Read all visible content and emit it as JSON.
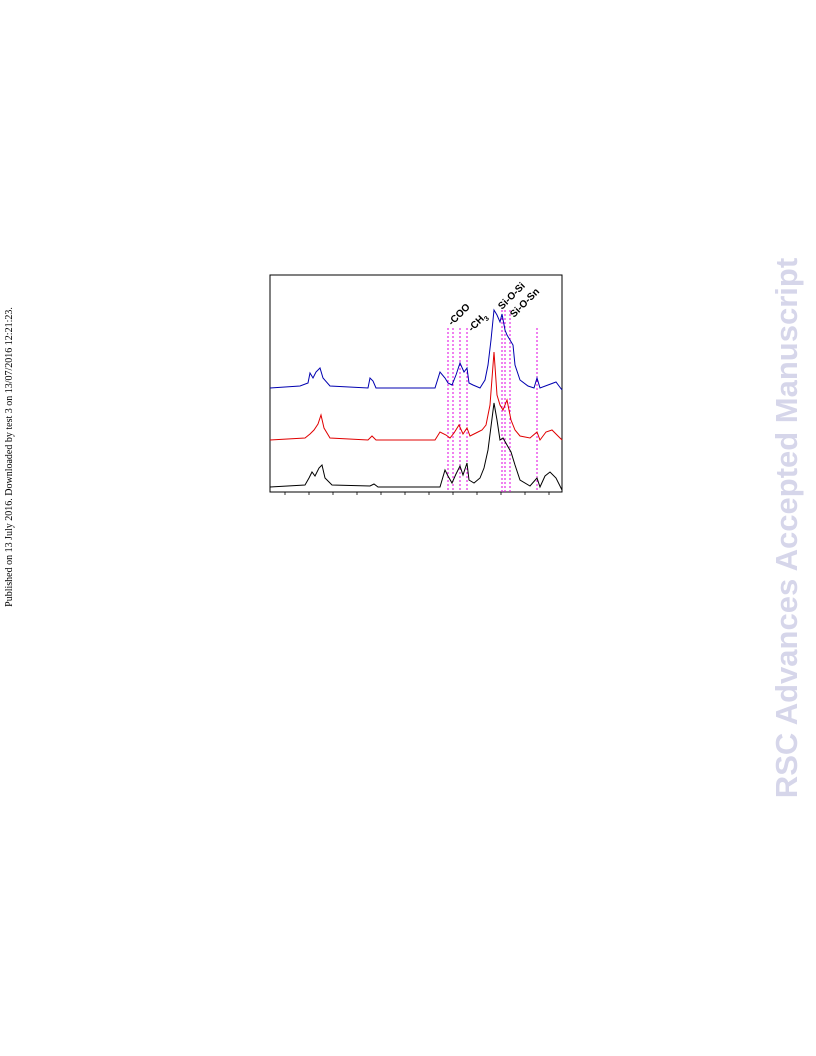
{
  "sidebar": "Published on 13 July 2016. Downloaded by test 3 on 13/07/2016 12:21:23.",
  "watermark": "RSC Advances Accepted Manuscript",
  "figure": {
    "annotations": {
      "coo": "-COO",
      "ch3": {
        "text": "-CH",
        "sub": "3"
      },
      "sisi": "Si-O-Si",
      "sisn": "Si-O-Sn"
    }
  }
}
